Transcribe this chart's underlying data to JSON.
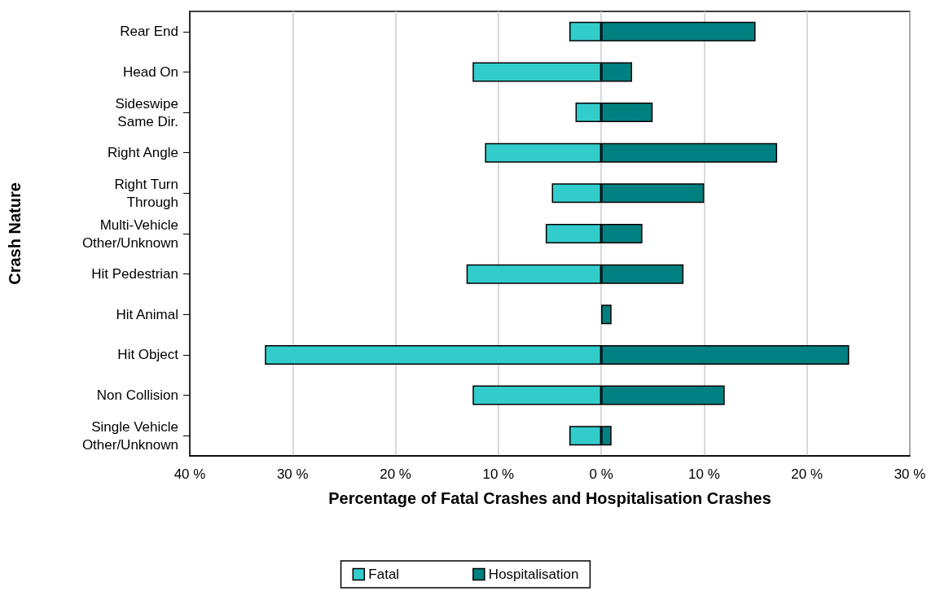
{
  "chart_data": {
    "type": "bar",
    "orientation": "horizontal",
    "categories": [
      "Rear End",
      "Head On",
      "Sideswipe Same Dir.",
      "Right Angle",
      "Right Turn Through",
      "Multi-Vehicle Other/Unknown",
      "Hit Pedestrian",
      "Hit Animal",
      "Hit Object",
      "Non Collision",
      "Single Vehicle Other/Unknown"
    ],
    "series": [
      {
        "name": "Fatal",
        "color": "#33cccc",
        "values": [
          -3.1,
          -12.5,
          -2.5,
          -11.3,
          -4.8,
          -5.4,
          -13.1,
          null,
          -32.7,
          -12.5,
          -3.1
        ]
      },
      {
        "name": "Hospitalisation",
        "color": "#008080",
        "values": [
          15.0,
          3.0,
          5.0,
          17.1,
          10.0,
          4.0,
          8.0,
          1.0,
          24.1,
          12.0,
          1.0
        ]
      }
    ],
    "xlabel": "Percentage of Fatal Crashes and Hospitalisation Crashes",
    "ylabel": "Crash Nature",
    "xlim": [
      -40,
      30
    ],
    "xticks": [
      {
        "value": -40,
        "label": "40 %"
      },
      {
        "value": -30,
        "label": "30 %"
      },
      {
        "value": -20,
        "label": "20 %"
      },
      {
        "value": -10,
        "label": "10 %"
      },
      {
        "value": 0,
        "label": "0 %"
      },
      {
        "value": 10,
        "label": "10 %"
      },
      {
        "value": 20,
        "label": "20 %"
      },
      {
        "value": 30,
        "label": "30 %"
      }
    ],
    "grid": "x",
    "legend": "bottom",
    "stacked": true
  }
}
